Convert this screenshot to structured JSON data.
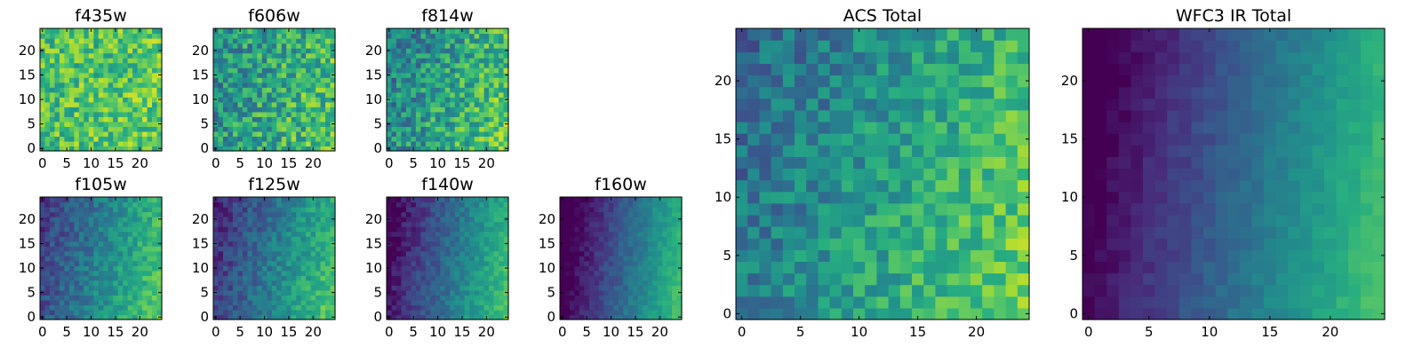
{
  "chart_data": [
    {
      "id": "f435w",
      "type": "heatmap",
      "title": "f435w",
      "grid_size": 25,
      "colormap": "viridis",
      "x_ticks": [
        0,
        5,
        10,
        15,
        20
      ],
      "y_ticks": [
        0,
        5,
        10,
        15,
        20
      ],
      "xlim": [
        -0.5,
        24.5
      ],
      "ylim": [
        -0.5,
        24.5
      ],
      "pattern": {
        "base": 0.72,
        "gx": 0.05,
        "gy": -0.02,
        "noise": 0.4,
        "seed": 11
      }
    },
    {
      "id": "f606w",
      "type": "heatmap",
      "title": "f606w",
      "grid_size": 25,
      "colormap": "viridis",
      "x_ticks": [
        0,
        5,
        10,
        15,
        20
      ],
      "y_ticks": [
        0,
        5,
        10,
        15,
        20
      ],
      "xlim": [
        -0.5,
        24.5
      ],
      "ylim": [
        -0.5,
        24.5
      ],
      "pattern": {
        "base": 0.6,
        "gx": 0.2,
        "gy": -0.05,
        "noise": 0.45,
        "seed": 23
      }
    },
    {
      "id": "f814w",
      "type": "heatmap",
      "title": "f814w",
      "grid_size": 25,
      "colormap": "viridis",
      "x_ticks": [
        0,
        5,
        10,
        15,
        20
      ],
      "y_ticks": [
        0,
        5,
        10,
        15,
        20
      ],
      "xlim": [
        -0.5,
        24.5
      ],
      "ylim": [
        -0.5,
        24.5
      ],
      "pattern": {
        "base": 0.58,
        "gx": 0.28,
        "gy": -0.08,
        "noise": 0.42,
        "seed": 37
      }
    },
    {
      "id": "f105w",
      "type": "heatmap",
      "title": "f105w",
      "grid_size": 25,
      "colormap": "viridis",
      "x_ticks": [
        0,
        5,
        10,
        15,
        20
      ],
      "y_ticks": [
        0,
        5,
        10,
        15,
        20
      ],
      "xlim": [
        -0.5,
        24.5
      ],
      "ylim": [
        -0.5,
        24.5
      ],
      "pattern": {
        "base": 0.45,
        "gx": 0.5,
        "gy": -0.1,
        "noise": 0.22,
        "seed": 41
      }
    },
    {
      "id": "f125w",
      "type": "heatmap",
      "title": "f125w",
      "grid_size": 25,
      "colormap": "viridis",
      "x_ticks": [
        0,
        5,
        10,
        15,
        20
      ],
      "y_ticks": [
        0,
        5,
        10,
        15,
        20
      ],
      "xlim": [
        -0.5,
        24.5
      ],
      "ylim": [
        -0.5,
        24.5
      ],
      "pattern": {
        "base": 0.42,
        "gx": 0.55,
        "gy": -0.12,
        "noise": 0.22,
        "seed": 53
      }
    },
    {
      "id": "f140w",
      "type": "heatmap",
      "title": "f140w",
      "grid_size": 25,
      "colormap": "viridis",
      "x_ticks": [
        0,
        5,
        10,
        15,
        20
      ],
      "y_ticks": [
        0,
        5,
        10,
        15,
        20
      ],
      "xlim": [
        -0.5,
        24.5
      ],
      "ylim": [
        -0.5,
        24.5
      ],
      "pattern": {
        "base": 0.35,
        "gx": 0.65,
        "gy": -0.1,
        "noise": 0.16,
        "seed": 67
      }
    },
    {
      "id": "f160w",
      "type": "heatmap",
      "title": "f160w",
      "grid_size": 25,
      "colormap": "viridis",
      "x_ticks": [
        0,
        5,
        10,
        15,
        20
      ],
      "y_ticks": [
        0,
        5,
        10,
        15,
        20
      ],
      "xlim": [
        -0.5,
        24.5
      ],
      "ylim": [
        -0.5,
        24.5
      ],
      "pattern": {
        "base": 0.3,
        "gx": 0.72,
        "gy": -0.1,
        "noise": 0.12,
        "seed": 79
      }
    },
    {
      "id": "acs-total",
      "type": "heatmap",
      "title": "ACS Total",
      "grid_size": 25,
      "colormap": "viridis",
      "x_ticks": [
        0,
        5,
        10,
        15,
        20
      ],
      "y_ticks": [
        0,
        5,
        10,
        15,
        20
      ],
      "xlim": [
        -0.5,
        24.5
      ],
      "ylim": [
        -0.5,
        24.5
      ],
      "pattern": {
        "base": 0.55,
        "gx": 0.35,
        "gy": -0.12,
        "noise": 0.3,
        "seed": 97
      }
    },
    {
      "id": "wfc3-ir-total",
      "type": "heatmap",
      "title": "WFC3 IR Total",
      "grid_size": 25,
      "colormap": "viridis",
      "x_ticks": [
        0,
        5,
        10,
        15,
        20
      ],
      "y_ticks": [
        0,
        5,
        10,
        15,
        20
      ],
      "xlim": [
        -0.5,
        24.5
      ],
      "ylim": [
        -0.5,
        24.5
      ],
      "pattern": {
        "base": 0.32,
        "gx": 0.7,
        "gy": -0.1,
        "noise": 0.08,
        "seed": 113
      }
    }
  ],
  "colors": {
    "viridis": [
      "#440154",
      "#472d7b",
      "#3b528b",
      "#2c728e",
      "#21918c",
      "#28ae80",
      "#5ec962",
      "#addc30",
      "#fde725"
    ]
  }
}
